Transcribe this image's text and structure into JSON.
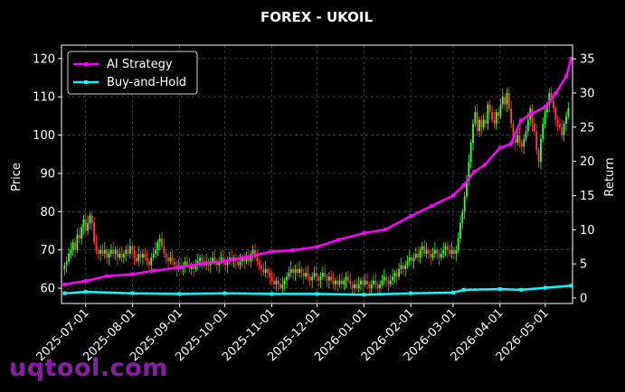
{
  "chart_data": {
    "type": "line",
    "title": "FOREX - UKOIL",
    "ylabel": "Price",
    "y2label": "Return",
    "ylim": [
      56,
      123.5
    ],
    "y2lim": [
      -0.8,
      37
    ],
    "yticks": [
      60,
      70,
      80,
      90,
      100,
      110,
      120
    ],
    "y2ticks": [
      0,
      5,
      10,
      15,
      20,
      25,
      30,
      35
    ],
    "xlim": [
      "2025-06-15",
      "2026-05-19"
    ],
    "xticks": [
      "2025-07-01",
      "2025-08-01",
      "2025-09-01",
      "2025-10-01",
      "2025-11-01",
      "2025-12-01",
      "2026-01-01",
      "2026-02-01",
      "2026-03-01",
      "2026-04-01",
      "2026-05-01"
    ],
    "grid": true,
    "legend_position": "top-left",
    "up_color": "#39ff39",
    "down_color": "#ff4040",
    "candles": {
      "start": "2025-06-17",
      "close": [
        66,
        67,
        69,
        70,
        72,
        70,
        74,
        73,
        76,
        78,
        75,
        77,
        79,
        77,
        72,
        70,
        69,
        70,
        69,
        70,
        68,
        69,
        70,
        69,
        70,
        68,
        69,
        68,
        69,
        70,
        69,
        71,
        70,
        68,
        67,
        69,
        68,
        69,
        68,
        67,
        66,
        68,
        69,
        70,
        72,
        73,
        71,
        69,
        68,
        67,
        68,
        67,
        66,
        65,
        66,
        65,
        66,
        67,
        66,
        65,
        66,
        65,
        66,
        67,
        68,
        67,
        66,
        67,
        66,
        67,
        68,
        67,
        66,
        67,
        68,
        67,
        66,
        67,
        68,
        67,
        68,
        67,
        66,
        67,
        68,
        67,
        68,
        67,
        69,
        70,
        68,
        67,
        66,
        65,
        64,
        65,
        64,
        63,
        62,
        61,
        62,
        61,
        60,
        61,
        62,
        63,
        64,
        65,
        64,
        65,
        64,
        65,
        64,
        63,
        64,
        63,
        62,
        63,
        64,
        63,
        62,
        63,
        64,
        63,
        62,
        63,
        62,
        61,
        62,
        61,
        62,
        61,
        62,
        63,
        62,
        61,
        60,
        61,
        60,
        61,
        62,
        61,
        62,
        61,
        60,
        61,
        62,
        61,
        60,
        61,
        62,
        63,
        62,
        61,
        62,
        63,
        64,
        63,
        65,
        66,
        65,
        66,
        67,
        68,
        67,
        68,
        69,
        68,
        70,
        71,
        69,
        70,
        69,
        68,
        69,
        70,
        69,
        68,
        69,
        70,
        71,
        70,
        69,
        70,
        69,
        70,
        73,
        77,
        80,
        84,
        88,
        93,
        98,
        103,
        106,
        101,
        104,
        102,
        104,
        103,
        108,
        106,
        104,
        103,
        106,
        105,
        108,
        110,
        108,
        111,
        107,
        103,
        99,
        98,
        100,
        98,
        97,
        99,
        101,
        104,
        107,
        103,
        101,
        96,
        93,
        99,
        103,
        106,
        108,
        111,
        109,
        107,
        104,
        103,
        102,
        100,
        103,
        105,
        107
      ]
    },
    "series": [
      {
        "name": "AI Strategy",
        "color": "#ff00ff",
        "dates": [
          "2025-06-17",
          "2025-07-01",
          "2025-07-15",
          "2025-08-01",
          "2025-08-15",
          "2025-09-01",
          "2025-09-15",
          "2025-10-01",
          "2025-10-15",
          "2025-11-01",
          "2025-11-15",
          "2025-12-01",
          "2025-12-15",
          "2026-01-01",
          "2026-01-15",
          "2026-02-01",
          "2026-02-15",
          "2026-03-01",
          "2026-03-08",
          "2026-03-15",
          "2026-03-22",
          "2026-04-01",
          "2026-04-08",
          "2026-04-15",
          "2026-04-22",
          "2026-05-01",
          "2026-05-08",
          "2026-05-15",
          "2026-05-18"
        ],
        "values": [
          2.0,
          2.5,
          3.2,
          3.5,
          4.0,
          4.5,
          5.0,
          5.4,
          6.0,
          6.8,
          7.0,
          7.5,
          8.5,
          9.5,
          10.0,
          12.0,
          13.5,
          15.0,
          16.5,
          18.5,
          19.5,
          22.0,
          22.5,
          26.0,
          27.0,
          28.0,
          30.0,
          32.5,
          35.0
        ]
      },
      {
        "name": "Buy-and-Hold",
        "color": "#00ffff",
        "dates": [
          "2025-06-17",
          "2025-07-01",
          "2025-08-01",
          "2025-09-01",
          "2025-10-01",
          "2025-11-01",
          "2025-12-01",
          "2026-01-01",
          "2026-02-01",
          "2026-03-01",
          "2026-03-08",
          "2026-04-01",
          "2026-04-15",
          "2026-05-01",
          "2026-05-18"
        ],
        "values": [
          0.7,
          0.9,
          0.7,
          0.6,
          0.7,
          0.6,
          0.6,
          0.5,
          0.7,
          0.8,
          1.2,
          1.3,
          1.2,
          1.5,
          1.8
        ]
      }
    ]
  },
  "watermark": "uqtool.com"
}
